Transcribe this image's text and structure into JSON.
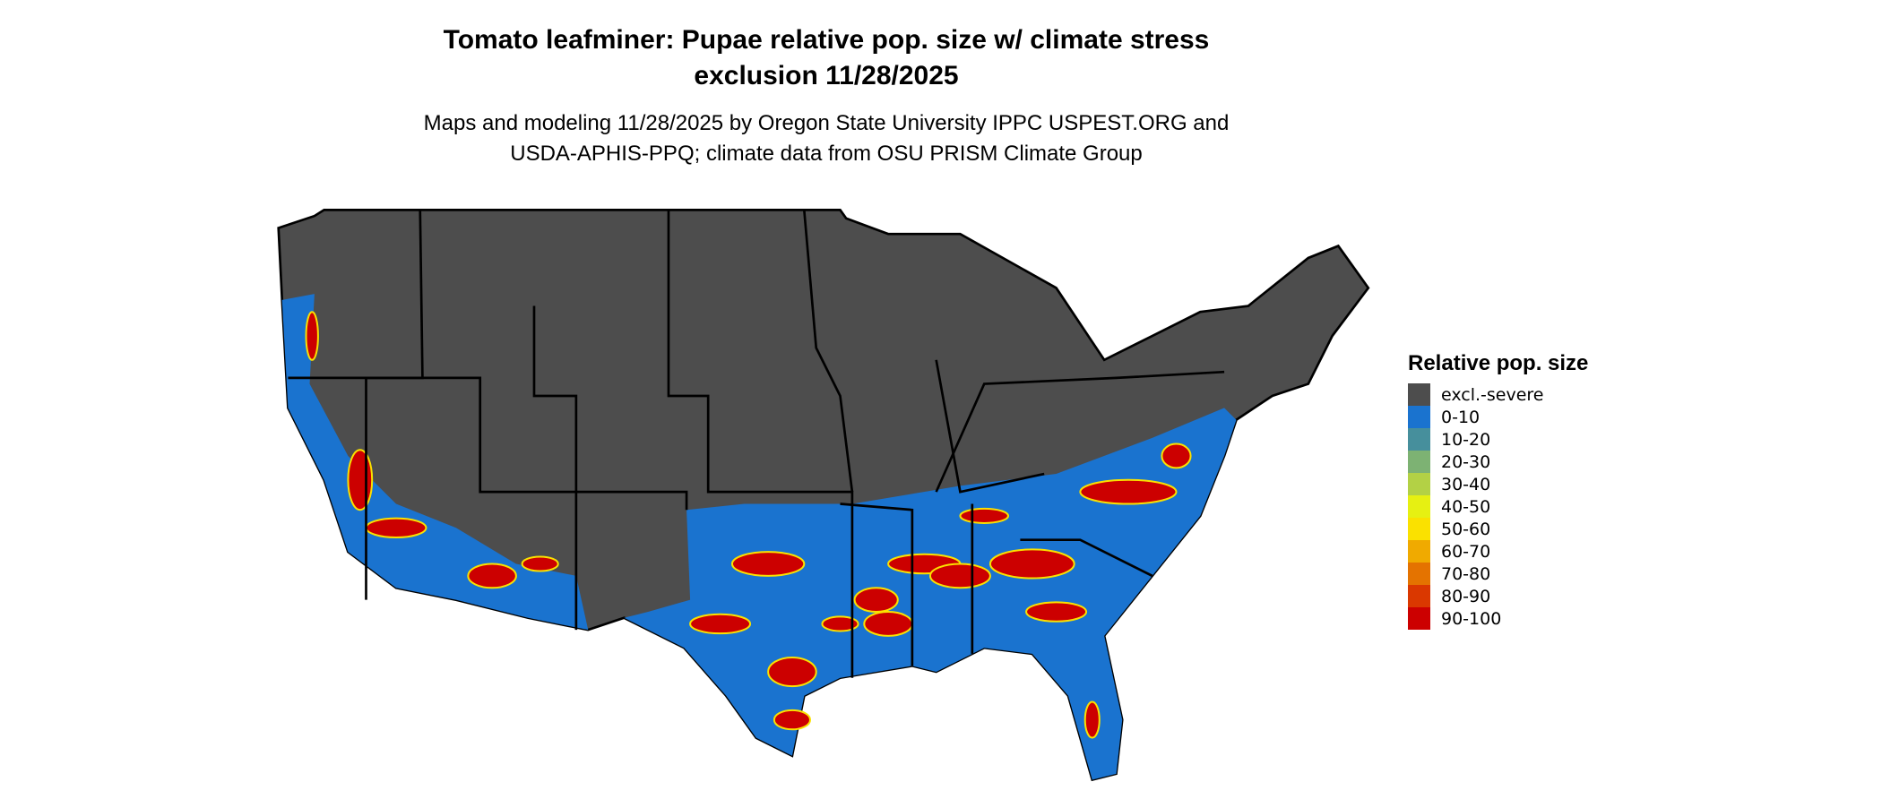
{
  "title_line1": "Tomato leafminer: Pupae relative pop. size w/ climate stress",
  "title_line2": "exclusion 11/28/2025",
  "subtitle_line1": "Maps and modeling 11/28/2025 by Oregon State University IPPC USPEST.ORG and",
  "subtitle_line2": "USDA-APHIS-PPQ; climate data from OSU PRISM Climate Group",
  "legend": {
    "title": "Relative pop. size",
    "items": [
      {
        "label": "excl.-severe",
        "color": "#4d4d4d"
      },
      {
        "label": "0-10",
        "color": "#1a73cf"
      },
      {
        "label": "10-20",
        "color": "#468f9c"
      },
      {
        "label": "20-30",
        "color": "#7db273"
      },
      {
        "label": "30-40",
        "color": "#b3d145"
      },
      {
        "label": "40-50",
        "color": "#e6f012"
      },
      {
        "label": "50-60",
        "color": "#fae100"
      },
      {
        "label": "60-70",
        "color": "#f0aa00"
      },
      {
        "label": "70-80",
        "color": "#e47300"
      },
      {
        "label": "80-90",
        "color": "#da3800"
      },
      {
        "label": "90-100",
        "color": "#cc0000"
      }
    ]
  },
  "map": {
    "region": "Contiguous United States",
    "dominant_category": "excl.-severe",
    "southern_category": "0-10",
    "hotspot_category": "90-100"
  }
}
